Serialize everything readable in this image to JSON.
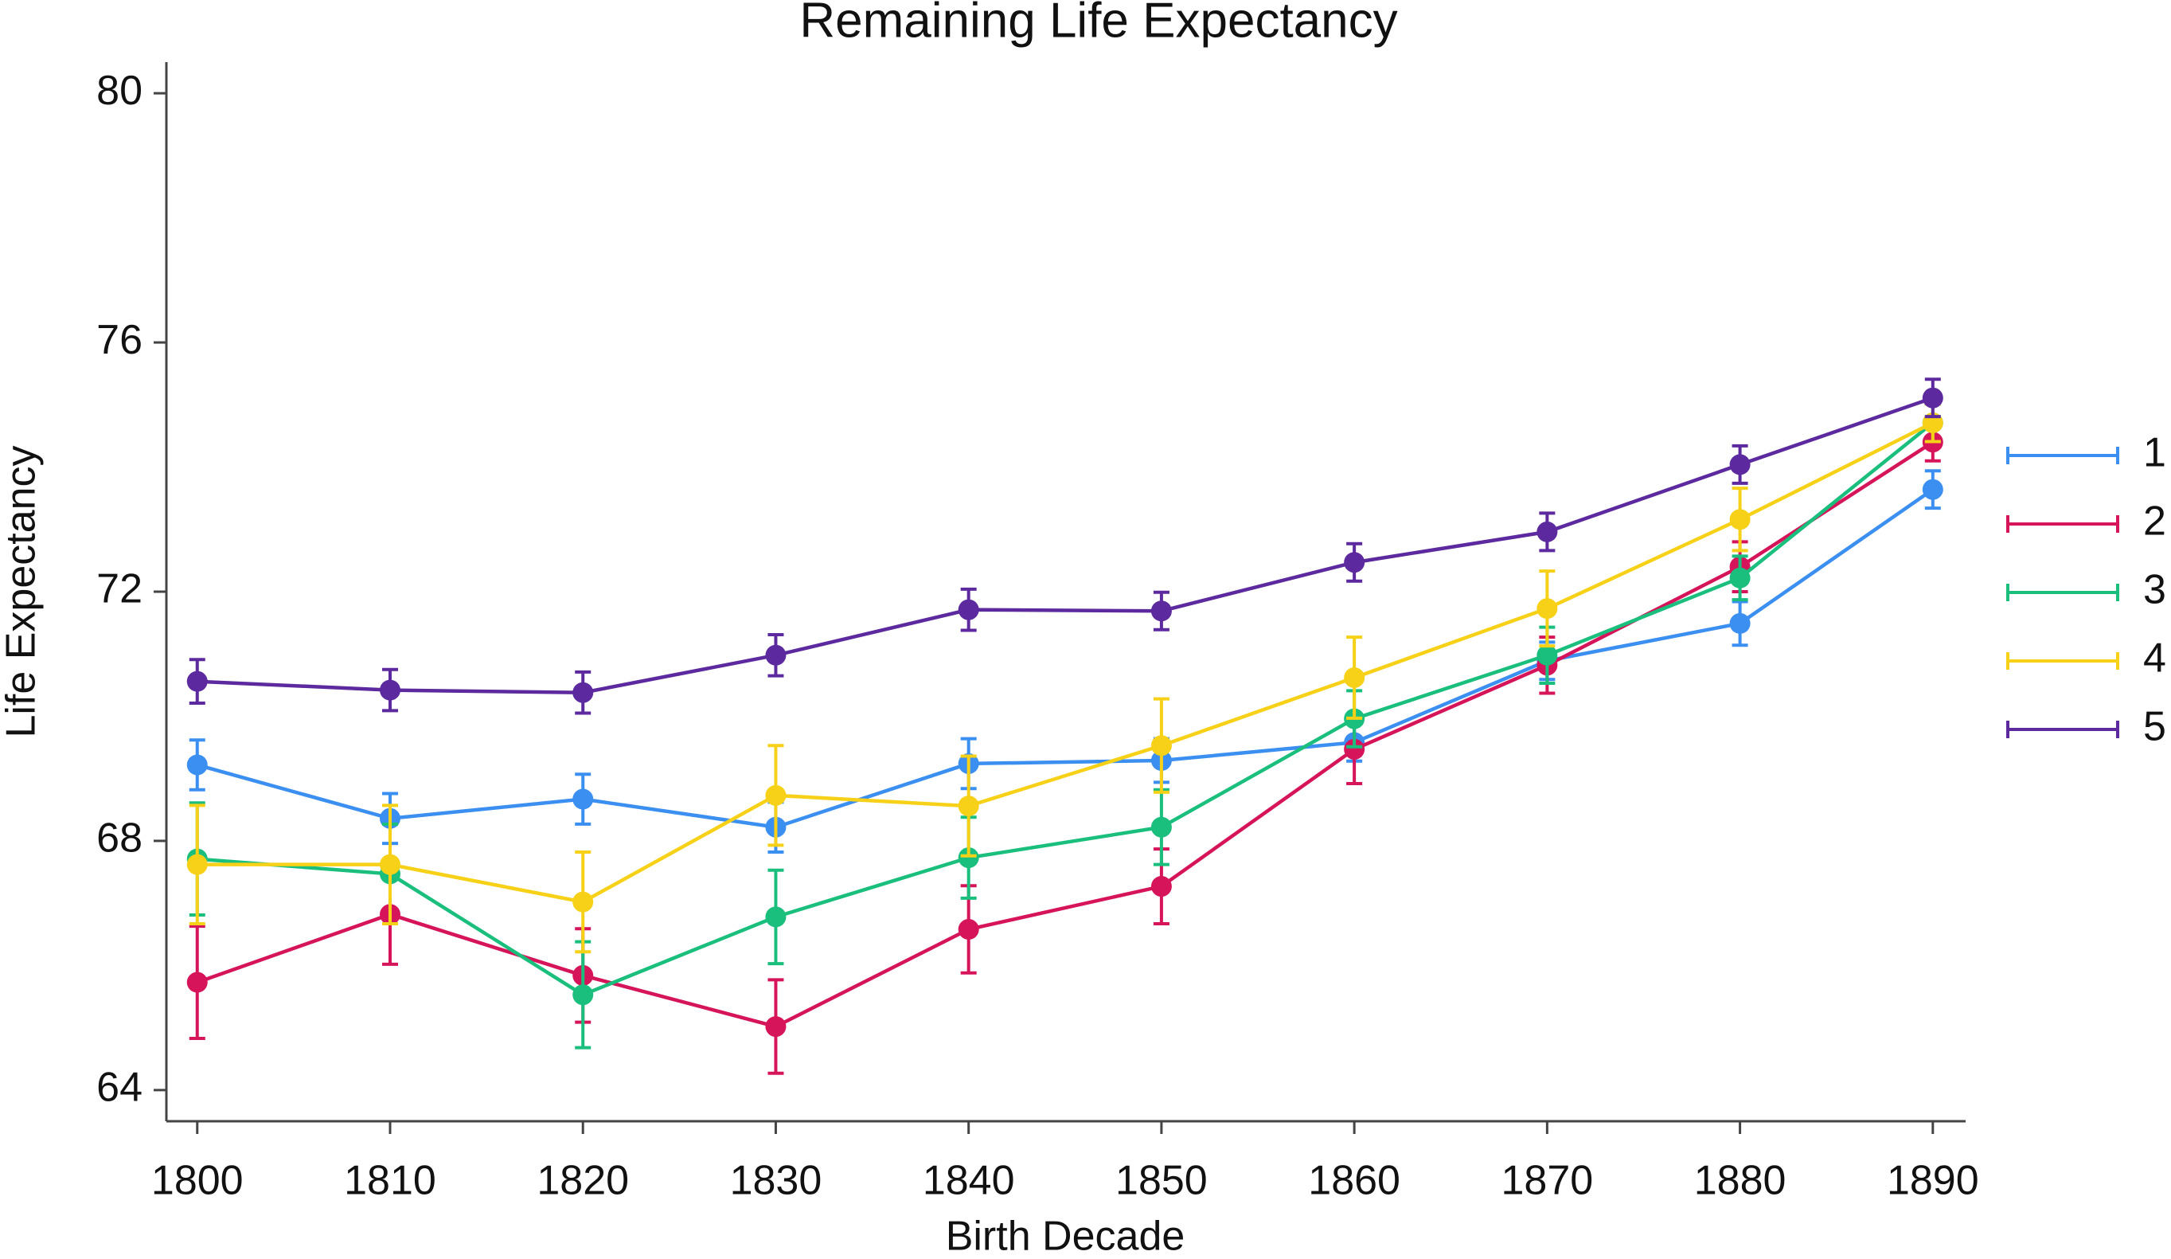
{
  "chart_data": {
    "type": "line",
    "title": "Remaining Life Expectancy",
    "x_label": "Birth Decade",
    "y_label": "Life Expectancy",
    "x": [
      1800,
      1810,
      1820,
      1830,
      1840,
      1850,
      1860,
      1870,
      1880,
      1890
    ],
    "xlim": [
      1798.4,
      1891.7
    ],
    "xticks": [
      1800,
      1810,
      1820,
      1830,
      1840,
      1850,
      1860,
      1870,
      1880,
      1890
    ],
    "ylim": [
      63.5,
      80.5
    ],
    "yticks": [
      64,
      68,
      72,
      76,
      80
    ],
    "legend": "right",
    "series": [
      {
        "name": "1",
        "color": "#3b8ff0",
        "values": [
          69.22,
          68.36,
          68.67,
          68.22,
          69.24,
          69.29,
          69.58,
          70.89,
          71.49,
          73.64
        ],
        "errors": [
          0.4,
          0.4,
          0.4,
          0.4,
          0.4,
          0.35,
          0.3,
          0.3,
          0.35,
          0.3
        ]
      },
      {
        "name": "2",
        "color": "#d6145a",
        "values": [
          65.73,
          66.82,
          65.84,
          65.02,
          66.58,
          67.27,
          69.47,
          70.82,
          72.4,
          74.4
        ],
        "errors": [
          0.9,
          0.8,
          0.75,
          0.75,
          0.7,
          0.6,
          0.55,
          0.45,
          0.4,
          0.3
        ]
      },
      {
        "name": "3",
        "color": "#1abf7d",
        "values": [
          67.71,
          67.47,
          65.53,
          66.78,
          67.73,
          68.22,
          69.96,
          70.98,
          72.22,
          74.71
        ],
        "errors": [
          0.9,
          0.8,
          0.85,
          0.75,
          0.65,
          0.6,
          0.45,
          0.45,
          0.35,
          0.3
        ]
      },
      {
        "name": "4",
        "color": "#f7d117",
        "values": [
          67.62,
          67.62,
          67.02,
          68.73,
          68.56,
          69.53,
          70.62,
          71.73,
          73.16,
          74.71
        ],
        "errors": [
          0.95,
          0.95,
          0.8,
          0.8,
          0.8,
          0.75,
          0.65,
          0.6,
          0.5,
          0.3
        ]
      },
      {
        "name": "5",
        "color": "#5c2a9e",
        "values": [
          70.56,
          70.42,
          70.38,
          70.98,
          71.71,
          71.69,
          72.47,
          72.96,
          74.04,
          75.11
        ],
        "errors": [
          0.35,
          0.33,
          0.33,
          0.33,
          0.33,
          0.3,
          0.3,
          0.3,
          0.3,
          0.3
        ]
      }
    ]
  }
}
